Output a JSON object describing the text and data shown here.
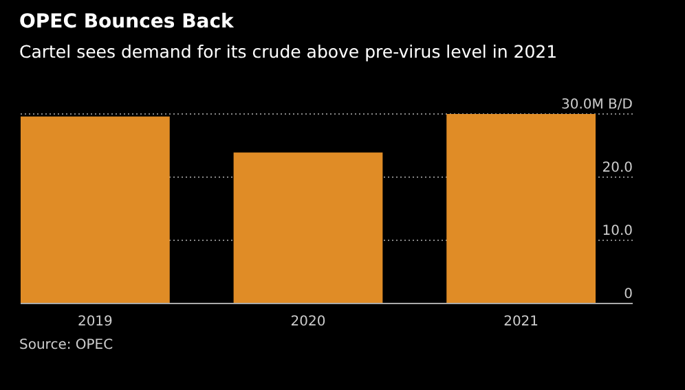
{
  "chart_data": {
    "type": "bar",
    "title": "OPEC Bounces Back",
    "subtitle": "Cartel sees demand for its crude above pre-virus level in 2021",
    "categories": [
      "2019",
      "2020",
      "2021"
    ],
    "values": [
      29.6,
      23.9,
      30
    ],
    "color": "#e08c26",
    "ylim": [
      0,
      30
    ],
    "yticks": [
      0,
      {
        "value": 10,
        "label": "10.0"
      },
      {
        "value": 20,
        "label": "20.0"
      },
      {
        "value": 30,
        "label": "30.0M B/D"
      }
    ],
    "grid": "y",
    "annotations": [
      "Source: OPEC"
    ]
  }
}
